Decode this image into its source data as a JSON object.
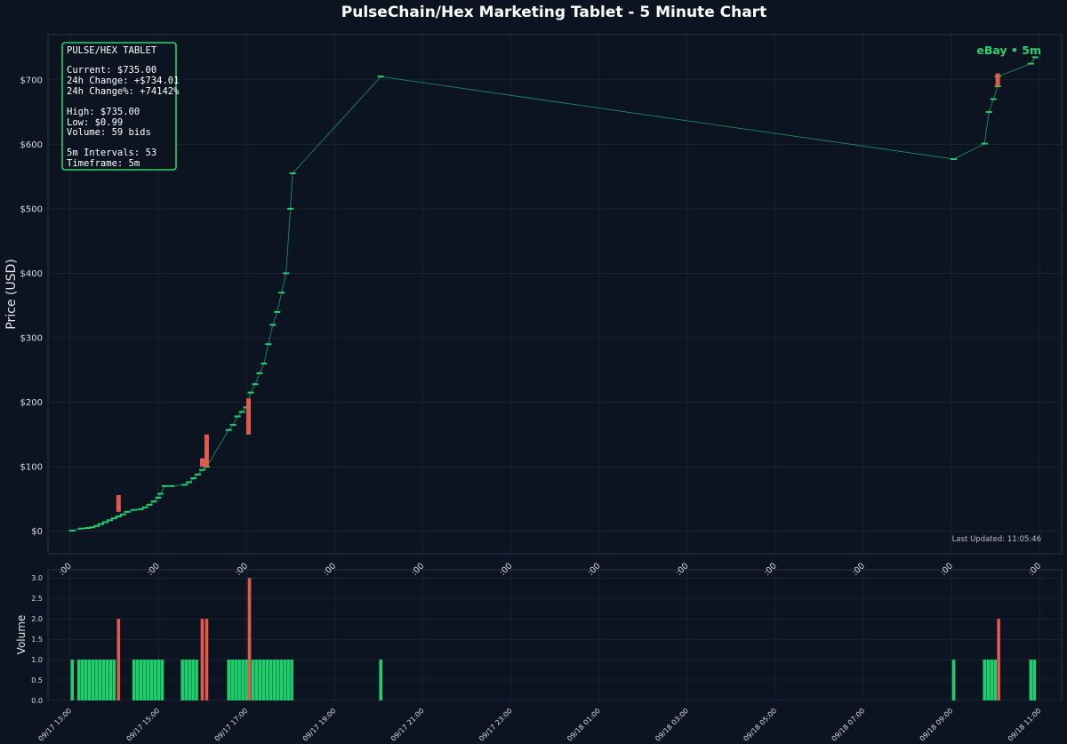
{
  "title": "PulseChain/Hex Marketing Tablet - 5 Minute Chart",
  "colors": {
    "background": "#0d1421",
    "up": "#1fcf6b",
    "down": "#e05a4e",
    "accent": "#22d36f",
    "line": "#1aa070",
    "grid": "#1c2636",
    "text": "#e6e6e6"
  },
  "info_box": {
    "title": "PULSE/HEX TABLET",
    "current": "Current: $735.00",
    "change": "24h Change: +$734.01",
    "change_pct": "24h Change%: +74142%",
    "high": "High: $735.00",
    "low": "Low: $0.99",
    "volume": "Volume: 59 bids",
    "intervals": "5m Intervals: 53",
    "timeframe": "Timeframe: 5m"
  },
  "badge": "eBay • 5m",
  "last_updated": "Last Updated: 11:05:46",
  "chart_data": [
    {
      "type": "candlestick",
      "ylabel": "Price (USD)",
      "ylim": [
        -35,
        770
      ],
      "yticks": [
        0,
        100,
        200,
        300,
        400,
        500,
        600,
        700
      ],
      "ytick_labels": [
        "$0",
        "$100",
        "$200",
        "$300",
        "$400",
        "$500",
        "$600",
        "$700"
      ],
      "x_range_hours": [
        -0.5,
        22.5
      ],
      "xticks_hours": [
        0,
        2,
        4,
        6,
        8,
        10,
        12,
        14,
        16,
        18,
        20,
        22
      ],
      "xtick_labels": [
        "09/17 13:00",
        "09/17 15:00",
        "09/17 17:00",
        "09/17 19:00",
        "09/17 21:00",
        "09/17 23:00",
        "09/18 01:00",
        "09/18 03:00",
        "09/18 05:00",
        "09/18 07:00",
        "09/18 09:00",
        "09/18 11:00"
      ],
      "top_xtick_labels_visible": [
        ":00",
        ":00",
        ":00",
        ":00",
        ":00",
        ":00",
        ":00",
        ":00",
        ":00",
        ":00",
        ":00",
        ":00"
      ],
      "grid": true,
      "line_points": [
        [
          0.05,
          1
        ],
        [
          0.25,
          4
        ],
        [
          0.4,
          5
        ],
        [
          0.5,
          6
        ],
        [
          0.6,
          8
        ],
        [
          0.7,
          11
        ],
        [
          0.8,
          14
        ],
        [
          0.9,
          17
        ],
        [
          1.0,
          20
        ],
        [
          1.1,
          23
        ],
        [
          1.2,
          26
        ],
        [
          1.3,
          30
        ],
        [
          1.45,
          33
        ],
        [
          1.6,
          34
        ],
        [
          1.7,
          37
        ],
        [
          1.8,
          41
        ],
        [
          1.9,
          46
        ],
        [
          2.0,
          52
        ],
        [
          2.05,
          58
        ],
        [
          2.15,
          70
        ],
        [
          2.3,
          70
        ],
        [
          2.6,
          72
        ],
        [
          2.7,
          76
        ],
        [
          2.8,
          82
        ],
        [
          2.9,
          88
        ],
        [
          3.0,
          95
        ],
        [
          3.1,
          100
        ],
        [
          3.6,
          157
        ],
        [
          3.7,
          165
        ],
        [
          3.8,
          178
        ],
        [
          3.9,
          185
        ],
        [
          4.0,
          192
        ],
        [
          4.1,
          215
        ],
        [
          4.2,
          228
        ],
        [
          4.3,
          245
        ],
        [
          4.4,
          260
        ],
        [
          4.5,
          290
        ],
        [
          4.6,
          320
        ],
        [
          4.7,
          340
        ],
        [
          4.8,
          370
        ],
        [
          4.9,
          400
        ],
        [
          5.0,
          500
        ],
        [
          5.05,
          555
        ],
        [
          7.05,
          705
        ],
        [
          20.05,
          577
        ],
        [
          20.75,
          601
        ],
        [
          20.85,
          650
        ],
        [
          20.95,
          670
        ],
        [
          21.05,
          690
        ],
        [
          21.05,
          705
        ],
        [
          21.8,
          725
        ],
        [
          21.9,
          735
        ]
      ],
      "red_candles": [
        {
          "t": 1.1,
          "high": 56,
          "low": 30
        },
        {
          "t": 3.0,
          "high": 113,
          "low": 100
        },
        {
          "t": 3.1,
          "high": 150,
          "low": 100
        },
        {
          "t": 4.05,
          "high": 206,
          "low": 150
        },
        {
          "t": 21.05,
          "high": 710,
          "low": 690
        }
      ]
    },
    {
      "type": "bar",
      "ylabel": "Volume",
      "ylim": [
        0,
        3.2
      ],
      "yticks": [
        0,
        0.5,
        1.0,
        1.5,
        2.0,
        2.5,
        3.0
      ],
      "ytick_labels": [
        "0.0",
        "0.5",
        "1.0",
        "1.5",
        "2.0",
        "2.5",
        "3.0"
      ],
      "up_bars_hours": [
        0.05,
        0.2,
        0.28,
        0.36,
        0.44,
        0.52,
        0.6,
        0.68,
        0.76,
        0.84,
        0.92,
        1.0,
        1.45,
        1.53,
        1.61,
        1.69,
        1.77,
        1.85,
        1.93,
        2.01,
        2.09,
        2.55,
        2.63,
        2.71,
        2.79,
        2.87,
        3.6,
        3.68,
        3.76,
        3.84,
        3.92,
        4.0,
        4.15,
        4.23,
        4.31,
        4.39,
        4.47,
        4.55,
        4.63,
        4.71,
        4.79,
        4.87,
        4.95,
        5.03,
        7.05,
        20.05,
        20.75,
        20.83,
        20.91,
        20.99,
        21.8,
        21.88
      ],
      "up_value": 1.0,
      "down_bars": [
        {
          "t": 1.1,
          "v": 2.0
        },
        {
          "t": 3.0,
          "v": 2.0
        },
        {
          "t": 3.1,
          "v": 2.0
        },
        {
          "t": 4.07,
          "v": 3.0
        },
        {
          "t": 21.07,
          "v": 2.0
        }
      ]
    }
  ]
}
